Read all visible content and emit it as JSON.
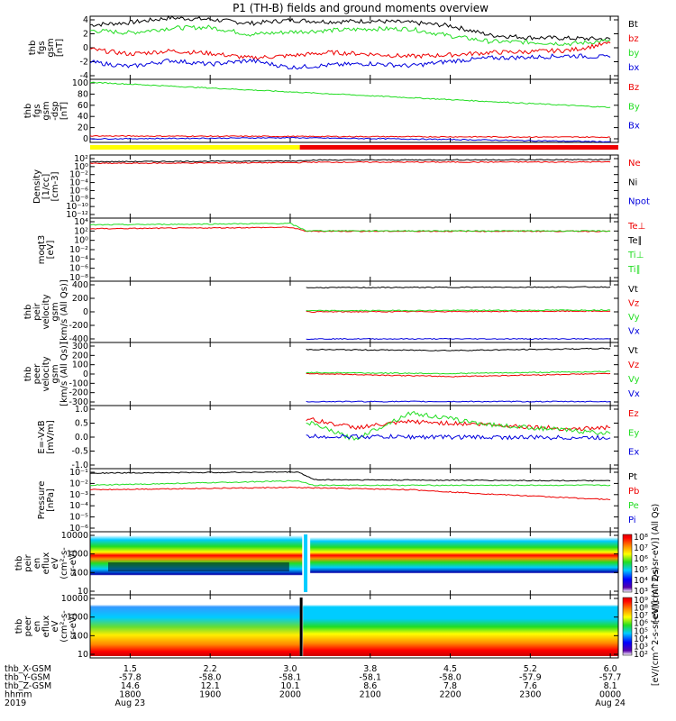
{
  "title": "P1 (TH-B) fields and ground moments overview",
  "colors": {
    "black": "#000000",
    "red": "#ee0000",
    "green": "#22dd22",
    "blue": "#0000dd",
    "yellow": "#ffff00",
    "white": "#ffffff"
  },
  "xaxis": {
    "rows": [
      {
        "label": "thb_X-GSM",
        "values": [
          "1.5",
          "2.2",
          "3.0",
          "3.8",
          "4.5",
          "5.2",
          "6.0"
        ]
      },
      {
        "label": "thb_Y-GSM",
        "values": [
          "-57.8",
          "-58.0",
          "-58.1",
          "-58.1",
          "-58.0",
          "-57.9",
          "-57.7"
        ]
      },
      {
        "label": "thb_Z-GSM",
        "values": [
          "14.6",
          "12.1",
          "10.1",
          "8.6",
          "7.8",
          "7.6",
          "8.1"
        ]
      },
      {
        "label": "hhmm",
        "values": [
          "1800",
          "1900",
          "2000",
          "2100",
          "2200",
          "2300",
          "0000"
        ]
      },
      {
        "label": "2019",
        "values": [
          "Aug 23",
          "",
          "",
          "",
          "",
          "",
          "Aug 24"
        ]
      }
    ],
    "range_hours": [
      17.5,
      24.1
    ],
    "tick_hours": [
      18,
      19,
      20,
      21,
      22,
      23,
      24
    ]
  },
  "panels": [
    {
      "id": "fgs-full",
      "ylabel": [
        "thb",
        "fgs",
        "gsm",
        "[nT]"
      ],
      "yticks": [
        "4",
        "2",
        "0",
        "-2",
        "-4"
      ],
      "ylim": [
        -4,
        4
      ],
      "legend": [
        {
          "text": "Bt",
          "color": "black"
        },
        {
          "text": "bz",
          "color": "red"
        },
        {
          "text": "by",
          "color": "green"
        },
        {
          "text": "bx",
          "color": "blue"
        }
      ]
    },
    {
      "id": "fgs-dc",
      "ylabel": [
        "thb",
        "fgs",
        "gsm",
        "-dsp",
        "[nT]"
      ],
      "yticks": [
        "100",
        "80",
        "60",
        "40",
        "20",
        "0"
      ],
      "ylim": [
        -8,
        100
      ],
      "legend": [
        {
          "text": "Bz",
          "color": "red"
        },
        {
          "text": "By",
          "color": "green"
        },
        {
          "text": "Bx",
          "color": "blue"
        }
      ]
    },
    {
      "id": "density",
      "ylabel": [
        "Density",
        "[1/cc]",
        "[cm-3]"
      ],
      "yticks": [
        "10²",
        "10⁰",
        "10⁻²",
        "10⁻⁴",
        "10⁻⁶",
        "10⁻⁸",
        "10⁻¹⁰",
        "10⁻¹²"
      ],
      "ylim": [
        -13,
        2
      ],
      "legend": [
        {
          "text": "Ne",
          "color": "red"
        },
        {
          "text": "Ni",
          "color": "black"
        },
        {
          "text": "Npot",
          "color": "blue"
        }
      ]
    },
    {
      "id": "temp",
      "ylabel": [
        "moqt3",
        "[eV]"
      ],
      "yticks": [
        "10⁴",
        "10²",
        "10⁰",
        "10⁻²",
        "10⁻⁴",
        "10⁻⁶",
        "10⁻⁸"
      ],
      "ylim": [
        -9,
        4
      ],
      "legend": [
        {
          "text": "Te⊥",
          "color": "red"
        },
        {
          "text": "Te∥",
          "color": "black"
        },
        {
          "text": "Ti⊥",
          "color": "green"
        },
        {
          "text": "Ti∥",
          "color": "green"
        }
      ]
    },
    {
      "id": "peir-v",
      "ylabel": [
        "thb",
        "peir",
        "velocity",
        "gsm",
        "[km/s (All Qs)]"
      ],
      "yticks": [
        "400",
        "200",
        "0",
        "-200",
        "-400"
      ],
      "ylim": [
        -430,
        420
      ],
      "legend": [
        {
          "text": "Vt",
          "color": "black"
        },
        {
          "text": "Vz",
          "color": "red"
        },
        {
          "text": "Vy",
          "color": "green"
        },
        {
          "text": "Vx",
          "color": "blue"
        }
      ]
    },
    {
      "id": "peer-v",
      "ylabel": [
        "thb",
        "peer",
        "velocity",
        "gsm",
        "[km/s (All Qs)]"
      ],
      "yticks": [
        "300",
        "200",
        "100",
        "0",
        "-100",
        "-200",
        "-300"
      ],
      "ylim": [
        -310,
        320
      ],
      "legend": [
        {
          "text": "Vt",
          "color": "black"
        },
        {
          "text": "Vz",
          "color": "red"
        },
        {
          "text": "Vy",
          "color": "green"
        },
        {
          "text": "Vx",
          "color": "blue"
        }
      ]
    },
    {
      "id": "efield",
      "ylabel": [
        "E=-VxB",
        "[mV/m]"
      ],
      "yticks": [
        "1.0",
        "0.5",
        "0.0",
        "-0.5",
        "-1.0"
      ],
      "ylim": [
        -1.1,
        1.05
      ],
      "legend": [
        {
          "text": "Ez",
          "color": "red"
        },
        {
          "text": "Ey",
          "color": "green"
        },
        {
          "text": "Ex",
          "color": "blue"
        }
      ]
    },
    {
      "id": "pressure",
      "ylabel": [
        "Pressure",
        "[nPa]"
      ],
      "yticks": [
        "10⁻¹",
        "10⁻²",
        "10⁻³",
        "10⁻⁴",
        "10⁻⁵",
        "10⁻⁶"
      ],
      "ylim": [
        -6.4,
        -0.7
      ],
      "legend": [
        {
          "text": "Pt",
          "color": "black"
        },
        {
          "text": "Pb",
          "color": "red"
        },
        {
          "text": "Pe",
          "color": "green"
        },
        {
          "text": "Pi",
          "color": "blue"
        }
      ]
    },
    {
      "id": "peir-spec",
      "ylabel": [
        "thb",
        "peir",
        "en",
        "eflux",
        "eV",
        "(cm²-s-",
        "sr-eV)"
      ],
      "yticks": [
        "10000",
        "1000",
        "100",
        "10"
      ],
      "ylim": [
        0.6,
        4.1
      ],
      "colorbar": {
        "ticks": [
          "10⁸",
          "10⁷",
          "10⁶",
          "10⁵",
          "10⁴",
          "10³"
        ],
        "label": "[eV/(cm^2-s-sr-eV)] (All Qs)"
      }
    },
    {
      "id": "peer-spec",
      "ylabel": [
        "thb",
        "peer",
        "en",
        "eflux",
        "eV",
        "(cm²-s-",
        "sr-eV)"
      ],
      "yticks": [
        "10000",
        "1000",
        "100",
        "10"
      ],
      "ylim": [
        0.7,
        4.1
      ],
      "colorbar": {
        "ticks": [
          "10⁹",
          "10⁸",
          "10⁷",
          "10⁶",
          "10⁵",
          "10⁴",
          "10³",
          "10²"
        ],
        "label": "[eV/(cm^2-s-sr-eV)] (All Qs)"
      }
    }
  ],
  "chart_data": {
    "type": "line",
    "title": "P1 (TH-B) fields and ground moments overview",
    "x_unit": "hour UT (2019-08-23)",
    "series": [
      {
        "panel": "fgs-full",
        "name": "Bt",
        "points": [
          [
            17.5,
            2.9
          ],
          [
            18,
            3.2
          ],
          [
            18.5,
            3.8
          ],
          [
            19,
            3.6
          ],
          [
            19.5,
            3.1
          ],
          [
            20,
            3.5
          ],
          [
            20.5,
            3.3
          ],
          [
            21,
            3.4
          ],
          [
            21.5,
            3.2
          ],
          [
            22,
            2.8
          ],
          [
            22.5,
            1.6
          ],
          [
            23,
            1.3
          ],
          [
            23.5,
            1.2
          ],
          [
            24,
            1.1
          ]
        ]
      },
      {
        "panel": "fgs-full",
        "name": "by",
        "points": [
          [
            17.5,
            2.2
          ],
          [
            18,
            1.9
          ],
          [
            18.5,
            2.5
          ],
          [
            19,
            2.6
          ],
          [
            19.5,
            1.7
          ],
          [
            20,
            2.0
          ],
          [
            20.5,
            2.2
          ],
          [
            21,
            2.4
          ],
          [
            21.5,
            2.4
          ],
          [
            22,
            1.5
          ],
          [
            22.5,
            0.8
          ],
          [
            23,
            0.7
          ],
          [
            23.5,
            0.5
          ],
          [
            24,
            0.9
          ]
        ]
      },
      {
        "panel": "fgs-full",
        "name": "bz",
        "points": [
          [
            17.5,
            -0.2
          ],
          [
            18,
            -0.8
          ],
          [
            18.5,
            -0.4
          ],
          [
            19,
            -0.7
          ],
          [
            19.5,
            -1.3
          ],
          [
            20,
            -1.0
          ],
          [
            20.5,
            -0.6
          ],
          [
            21,
            -0.8
          ],
          [
            21.5,
            -1.1
          ],
          [
            22,
            -0.9
          ],
          [
            22.5,
            -0.6
          ],
          [
            23,
            -0.5
          ],
          [
            23.5,
            -0.3
          ],
          [
            24,
            0.6
          ]
        ]
      },
      {
        "panel": "fgs-full",
        "name": "bx",
        "points": [
          [
            17.5,
            -1.8
          ],
          [
            18,
            -2.4
          ],
          [
            18.5,
            -1.6
          ],
          [
            19,
            -2.1
          ],
          [
            19.5,
            -1.6
          ],
          [
            20,
            -2.5
          ],
          [
            20.5,
            -2.2
          ],
          [
            21,
            -2.0
          ],
          [
            21.5,
            -2.3
          ],
          [
            22,
            -1.7
          ],
          [
            22.5,
            -1.3
          ],
          [
            23,
            -1.2
          ],
          [
            23.5,
            -1.0
          ],
          [
            24,
            -1.2
          ]
        ]
      },
      {
        "panel": "fgs-dc",
        "name": "By",
        "points": [
          [
            17.5,
            95
          ],
          [
            24,
            52
          ]
        ]
      },
      {
        "panel": "fgs-dc",
        "name": "Bz",
        "points": [
          [
            17.5,
            3
          ],
          [
            24,
            1
          ]
        ]
      },
      {
        "panel": "fgs-dc",
        "name": "Bx",
        "points": [
          [
            17.5,
            -2
          ],
          [
            20,
            0
          ],
          [
            22,
            -3
          ],
          [
            24,
            -7
          ]
        ]
      },
      {
        "panel": "density",
        "name": "Ne",
        "points": [
          [
            17.5,
            0.0
          ],
          [
            20.1,
            0.2
          ],
          [
            20.2,
            0.3
          ],
          [
            24,
            0.35
          ]
        ]
      },
      {
        "panel": "density",
        "name": "Ni",
        "points": [
          [
            17.5,
            0.4
          ],
          [
            20.1,
            0.6
          ],
          [
            20.2,
            0.8
          ],
          [
            24,
            0.9
          ]
        ]
      },
      {
        "panel": "temp",
        "name": "Te⊥",
        "points": [
          [
            17.5,
            1.8
          ],
          [
            20,
            2.1
          ],
          [
            20.2,
            1.3
          ],
          [
            24,
            1.3
          ]
        ]
      },
      {
        "panel": "temp",
        "name": "Ti∥",
        "points": [
          [
            17.5,
            2.6
          ],
          [
            20,
            2.9
          ],
          [
            20.2,
            1.4
          ],
          [
            24,
            1.35
          ]
        ]
      },
      {
        "panel": "peir-v",
        "name": "Vt",
        "points": [
          [
            20.2,
            330
          ],
          [
            24,
            340
          ]
        ]
      },
      {
        "panel": "peir-v",
        "name": "Vz",
        "points": [
          [
            20.2,
            -5
          ],
          [
            24,
            5
          ]
        ]
      },
      {
        "panel": "peir-v",
        "name": "Vy",
        "points": [
          [
            20.2,
            10
          ],
          [
            24,
            20
          ]
        ]
      },
      {
        "panel": "peir-v",
        "name": "Vx",
        "points": [
          [
            20.2,
            -380
          ],
          [
            24,
            -380
          ]
        ]
      },
      {
        "panel": "peer-v",
        "name": "Vt",
        "points": [
          [
            20.2,
            250
          ],
          [
            22,
            240
          ],
          [
            24,
            260
          ]
        ]
      },
      {
        "panel": "peer-v",
        "name": "Vz",
        "points": [
          [
            20.2,
            10
          ],
          [
            22,
            -20
          ],
          [
            24,
            10
          ]
        ]
      },
      {
        "panel": "peer-v",
        "name": "Vy",
        "points": [
          [
            20.2,
            20
          ],
          [
            22,
            10
          ],
          [
            24,
            30
          ]
        ]
      },
      {
        "panel": "peer-v",
        "name": "Vx",
        "points": [
          [
            20.2,
            -270
          ],
          [
            24,
            -270
          ]
        ]
      },
      {
        "panel": "efield",
        "name": "Ez",
        "points": [
          [
            20.2,
            0.6
          ],
          [
            20.8,
            0.3
          ],
          [
            21.5,
            0.5
          ],
          [
            22.5,
            0.4
          ],
          [
            23.5,
            0.25
          ],
          [
            24,
            0.3
          ]
        ]
      },
      {
        "panel": "efield",
        "name": "Ey",
        "points": [
          [
            20.2,
            0.5
          ],
          [
            20.8,
            -0.1
          ],
          [
            21.5,
            0.8
          ],
          [
            22.5,
            0.4
          ],
          [
            23.5,
            0.2
          ],
          [
            24,
            0.1
          ]
        ]
      },
      {
        "panel": "efield",
        "name": "Ex",
        "points": [
          [
            20.2,
            0.0
          ],
          [
            24,
            -0.05
          ]
        ]
      },
      {
        "panel": "pressure",
        "name": "Pt",
        "points": [
          [
            17.5,
            -1.1
          ],
          [
            20.1,
            -1.0
          ],
          [
            20.3,
            -1.7
          ],
          [
            24,
            -1.8
          ]
        ]
      },
      {
        "panel": "pressure",
        "name": "Pe",
        "points": [
          [
            17.5,
            -2.2
          ],
          [
            20.1,
            -1.8
          ],
          [
            20.3,
            -2.2
          ],
          [
            24,
            -2.2
          ]
        ]
      },
      {
        "panel": "pressure",
        "name": "Pb",
        "points": [
          [
            17.5,
            -2.6
          ],
          [
            20,
            -2.4
          ],
          [
            21.5,
            -2.6
          ],
          [
            22.5,
            -3.0
          ],
          [
            24,
            -3.5
          ]
        ]
      }
    ]
  }
}
